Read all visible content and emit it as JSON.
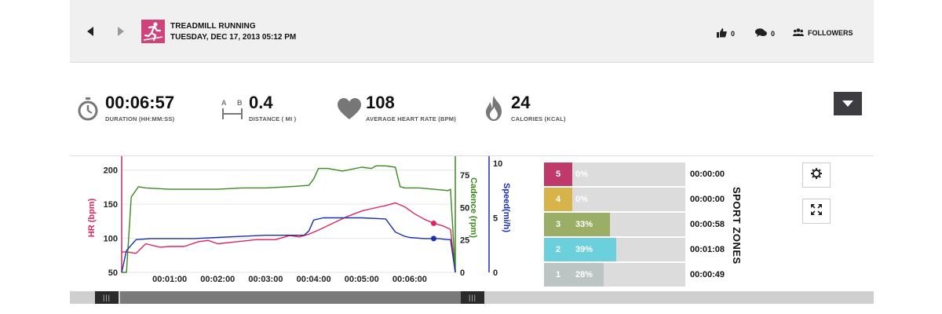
{
  "header": {
    "activity_title": "TREADMILL RUNNING",
    "activity_date": "TUESDAY, DEC 17, 2013 05:12 PM",
    "likes_count": "0",
    "comments_count": "0",
    "followers_label": "FOLLOWERS",
    "icons": {
      "prev": "triangle-left",
      "next": "triangle-right",
      "activity": "runner-icon",
      "likes": "thumbs-up-icon",
      "comments": "chat-icon",
      "followers": "people-icon"
    }
  },
  "stats": [
    {
      "value": "00:06:57",
      "label": "DURATION (HH:MM:SS)",
      "icon": "stopwatch-icon"
    },
    {
      "value": "0.4",
      "label": "DISTANCE ( MI )",
      "icon": "distance-icon",
      "icon_text_a": "A",
      "icon_text_b": "B"
    },
    {
      "value": "108",
      "label": "AVERAGE HEART RATE (BPM)",
      "icon": "heart-icon"
    },
    {
      "value": "24",
      "label": "CALORIES (KCAL)",
      "icon": "flame-icon"
    }
  ],
  "chart_data": {
    "type": "line",
    "x_tick_labels": [
      "00:01:00",
      "00:02:00",
      "00:03:00",
      "00:04:00",
      "00:05:00",
      "00:06:00"
    ],
    "x_minutes_range": [
      0,
      6.95
    ],
    "axes": {
      "hr": {
        "label": "HR (bpm)",
        "ticks": [
          50,
          100,
          150,
          200
        ],
        "range": [
          50,
          210
        ],
        "color": "#e0245e"
      },
      "cadence": {
        "label": "Cadence (rpm)",
        "ticks": [
          0,
          25,
          50,
          75
        ],
        "range": [
          0,
          84
        ],
        "color": "#3a8a1e"
      },
      "speed": {
        "label": "Speed(mi/h)",
        "ticks": [
          0,
          5,
          10
        ],
        "range": [
          0,
          10
        ],
        "color": "#1a2fb0"
      }
    },
    "series": [
      {
        "name": "HR (bpm)",
        "axis": "hr",
        "color": "#e0245e",
        "x": [
          0,
          0.1,
          0.3,
          0.5,
          0.8,
          1.0,
          1.3,
          1.6,
          1.8,
          2.0,
          2.4,
          2.8,
          3.2,
          3.5,
          3.7,
          3.9,
          4.1,
          4.4,
          4.7,
          5.0,
          5.3,
          5.5,
          5.7,
          5.9,
          6.1,
          6.3,
          6.5,
          6.7,
          6.85,
          6.95
        ],
        "y": [
          80,
          80,
          78,
          92,
          87,
          88,
          88,
          95,
          97,
          92,
          95,
          98,
          98,
          104,
          102,
          106,
          112,
          122,
          132,
          140,
          145,
          148,
          152,
          146,
          136,
          128,
          122,
          118,
          113,
          50
        ]
      },
      {
        "name": "Cadence (rpm)",
        "axis": "cadence",
        "color": "#3a8a1e",
        "x": [
          0,
          0.1,
          0.2,
          0.35,
          0.5,
          1.0,
          1.5,
          2.0,
          2.5,
          3.0,
          3.5,
          3.9,
          4.0,
          4.1,
          4.3,
          4.6,
          5.0,
          5.2,
          5.3,
          5.5,
          5.7,
          5.8,
          5.9,
          6.2,
          6.5,
          6.8,
          6.85,
          6.95
        ],
        "y": [
          0,
          0,
          58,
          66,
          65,
          64,
          64,
          64,
          65,
          65,
          66,
          67,
          72,
          80,
          80,
          78,
          81,
          80,
          82,
          82,
          81,
          66,
          65,
          65,
          64,
          63,
          64,
          0
        ]
      },
      {
        "name": "Speed(mi/h)",
        "axis": "speed",
        "color": "#1a2fb0",
        "x": [
          0,
          0.1,
          0.3,
          0.6,
          1.0,
          1.5,
          2.0,
          2.5,
          3.0,
          3.5,
          3.8,
          3.9,
          4.0,
          4.2,
          4.5,
          5.0,
          5.5,
          5.7,
          5.9,
          6.0,
          6.3,
          6.6,
          6.8,
          6.85,
          6.95
        ],
        "y": [
          0,
          2,
          3,
          3.1,
          3.1,
          3.1,
          3.2,
          3.3,
          3.4,
          3.4,
          3.4,
          3.8,
          4.8,
          5.0,
          5.0,
          5.0,
          4.9,
          3.7,
          3.3,
          3.2,
          3.1,
          3.1,
          3.0,
          3.0,
          0
        ]
      }
    ],
    "markers": [
      {
        "series": "HR (bpm)",
        "x": 6.5,
        "y": 122
      },
      {
        "series": "Speed(mi/h)",
        "x": 6.5,
        "y": 3.1
      }
    ]
  },
  "sport_zones": {
    "title": "SPORT ZONES",
    "zones": [
      {
        "zone": "5",
        "percent_label": "0%",
        "fraction": 0.0,
        "time": "00:00:00",
        "color": "#c0396b"
      },
      {
        "zone": "4",
        "percent_label": "0%",
        "fraction": 0.0,
        "time": "00:00:00",
        "color": "#d6b44a"
      },
      {
        "zone": "3",
        "percent_label": "33%",
        "fraction": 0.33,
        "time": "00:00:58",
        "color": "#9aae66"
      },
      {
        "zone": "2",
        "percent_label": "39%",
        "fraction": 0.39,
        "time": "00:01:08",
        "color": "#6ccfdc"
      },
      {
        "zone": "1",
        "percent_label": "28%",
        "fraction": 0.28,
        "time": "00:00:49",
        "color": "#bcc4c4"
      }
    ]
  },
  "toolbar": {
    "settings_icon": "gear-icon",
    "fullscreen_icon": "expand-icon"
  },
  "scrollbar": {
    "handle_grip": "|||"
  }
}
